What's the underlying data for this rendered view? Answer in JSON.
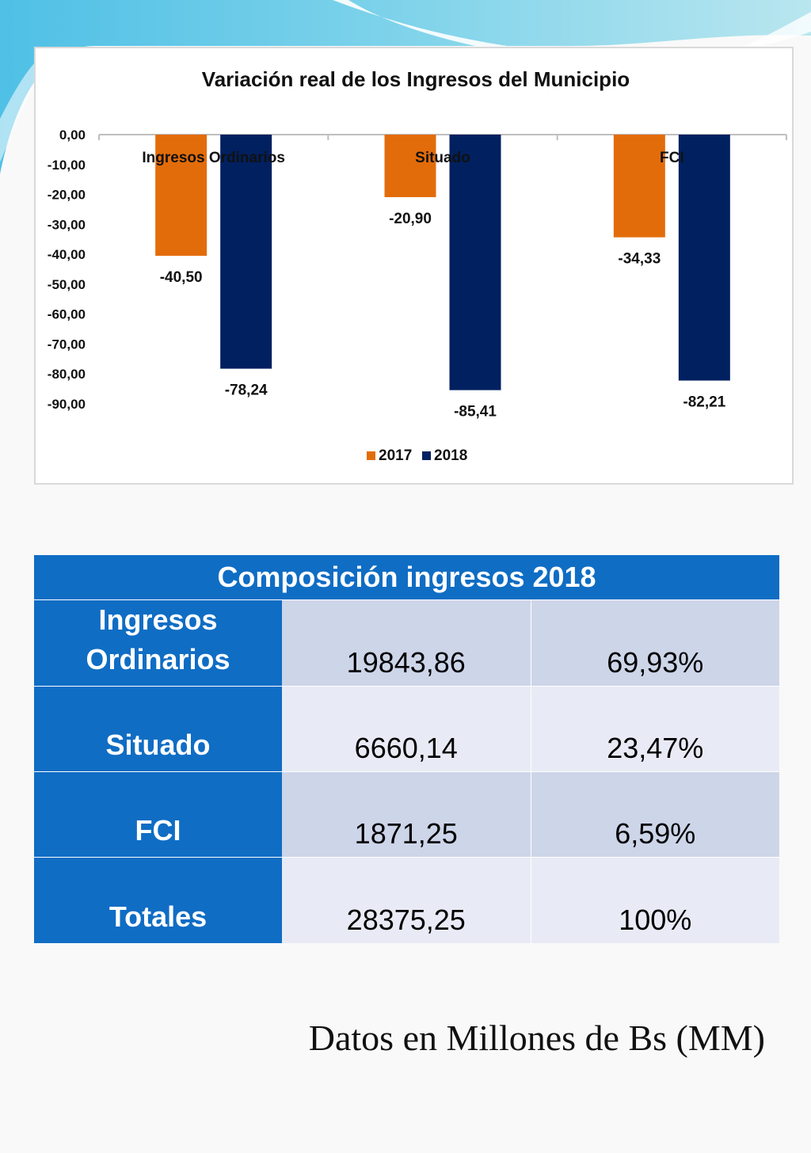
{
  "colors": {
    "series_2017": "#e36c0a",
    "series_2018": "#002060",
    "table_header": "#0f6dc4",
    "table_row_a": "#cdd5e9",
    "table_row_b": "#e8ebf5"
  },
  "chart_data": {
    "type": "bar",
    "title": "Variación real de los Ingresos del Municipio",
    "categories": [
      "Ingresos Ordinarios",
      "Situado",
      "FCI"
    ],
    "series": [
      {
        "name": "2017",
        "values": [
          -40.5,
          -20.9,
          -34.33
        ],
        "labels": [
          "-40,50",
          "-20,90",
          "-34,33"
        ],
        "color": "#e36c0a"
      },
      {
        "name": "2018",
        "values": [
          -78.24,
          -85.41,
          -82.21
        ],
        "labels": [
          "-78,24",
          "-85,41",
          "-82,21"
        ],
        "color": "#002060"
      }
    ],
    "yticks": [
      0,
      -10,
      -20,
      -30,
      -40,
      -50,
      -60,
      -70,
      -80,
      -90
    ],
    "ytick_labels": [
      "0,00",
      "-10,00",
      "-20,00",
      "-30,00",
      "-40,00",
      "-50,00",
      "-60,00",
      "-70,00",
      "-80,00",
      "-90,00"
    ],
    "ylim": [
      -90,
      0
    ],
    "grid": false,
    "legend": "bottom"
  },
  "table": {
    "title": "Composición ingresos 2018",
    "rows": [
      {
        "label": "Ingresos Ordinarios",
        "amount": "19843,86",
        "percent": "69,93%"
      },
      {
        "label": "Situado",
        "amount": "6660,14",
        "percent": "23,47%"
      },
      {
        "label": "FCI",
        "amount": "1871,25",
        "percent": "6,59%"
      },
      {
        "label": "Totales",
        "amount": "28375,25",
        "percent": "100%"
      }
    ]
  },
  "footnote": "Datos en Millones de Bs (MM)"
}
